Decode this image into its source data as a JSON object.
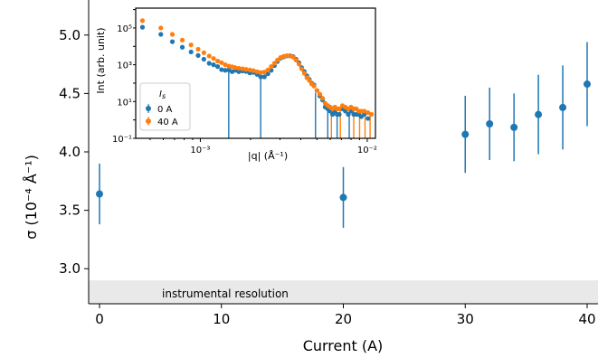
{
  "chart_data": [
    {
      "type": "scatter",
      "xlabel": "Current (A)",
      "ylabel": "σ (10⁻⁴ Å⁻¹)",
      "xlim": [
        -1.3,
        41
      ],
      "ylim": [
        2.7,
        5.3
      ],
      "xticks": [
        0,
        10,
        20,
        30,
        40
      ],
      "yticks": [
        3.0,
        3.5,
        4.0,
        4.5,
        5.0
      ],
      "xtick_labels": [
        "0",
        "10",
        "20",
        "30",
        "40"
      ],
      "ytick_labels": [
        "3.0",
        "3.5",
        "4.0",
        "4.5",
        "5.0"
      ],
      "grid": false,
      "color": "#1f77b4",
      "points": [
        {
          "x": 0,
          "y": 3.64,
          "err": 0.26
        },
        {
          "x": 20,
          "y": 3.61,
          "err": 0.26
        },
        {
          "x": 30,
          "y": 4.15,
          "err": 0.33
        },
        {
          "x": 32,
          "y": 4.24,
          "err": 0.31
        },
        {
          "x": 34,
          "y": 4.21,
          "err": 0.29
        },
        {
          "x": 36,
          "y": 4.32,
          "err": 0.34
        },
        {
          "x": 38,
          "y": 4.38,
          "err": 0.36
        },
        {
          "x": 40,
          "y": 4.58,
          "err": 0.36
        }
      ],
      "band": {
        "y_from": 2.7,
        "y_to": 2.9,
        "label": "instrumental resolution",
        "color": "#e9e9e9"
      }
    },
    {
      "type": "scatter",
      "xlabel": "|q| (Å⁻¹)",
      "ylabel": "Int (arb. unit)",
      "x_scale": "log",
      "y_scale": "log",
      "xlim": [
        0.00041,
        0.0112
      ],
      "ylim": [
        0.1,
        1200000
      ],
      "xtick_labels": [
        "10⁻³",
        "10⁻²"
      ],
      "ytick_labels": [
        "10⁵",
        "10³",
        "10¹",
        "10⁻¹"
      ],
      "legend": {
        "title": "I_s",
        "placement": "lower-left",
        "entries": [
          {
            "label": "0 A",
            "color": "#1f77b4"
          },
          {
            "label": "40 A",
            "color": "#ff7f0e"
          }
        ]
      },
      "series": [
        {
          "name": "0 A",
          "color": "#1f77b4",
          "q": [
            0.00045,
            0.00058,
            0.00068,
            0.00078,
            0.00088,
            0.00097,
            0.00105,
            0.00113,
            0.0012,
            0.00127,
            0.00134,
            0.00141,
            0.00148,
            0.00155,
            0.00162,
            0.0017,
            0.00179,
            0.00188,
            0.00198,
            0.00208,
            0.00219,
            0.0023,
            0.00242,
            0.00254,
            0.00266,
            0.00278,
            0.0029,
            0.00303,
            0.00316,
            0.0033,
            0.00345,
            0.0036,
            0.00375,
            0.0039,
            0.00405,
            0.0042,
            0.00435,
            0.0045,
            0.00465,
            0.0048,
            0.005,
            0.0052,
            0.0054,
            0.0056,
            0.0058,
            0.006,
            0.0062,
            0.0064,
            0.0066,
            0.0068,
            0.0071,
            0.0074,
            0.0077,
            0.008,
            0.0083,
            0.0086,
            0.0089,
            0.0092,
            0.0096,
            0.0101
          ],
          "intensity": [
            110000,
            45000,
            18000,
            9000,
            5000,
            3200,
            2000,
            1200,
            1000,
            800,
            540,
            500,
            520,
            420,
            500,
            420,
            460,
            430,
            360,
            380,
            300,
            220,
            220,
            320,
            500,
            900,
            1500,
            2300,
            2700,
            3000,
            3100,
            2800,
            2000,
            1300,
            700,
            430,
            250,
            160,
            100,
            80,
            40,
            20,
            12,
            5,
            4,
            3,
            2,
            3,
            2,
            2,
            4,
            3,
            2,
            3,
            2,
            2,
            2,
            1.5,
            2,
            1.2
          ],
          "dropouts": [
            {
              "q": 0.00148,
              "from": 420,
              "to": 0.1
            },
            {
              "q": 0.0023,
              "from": 220,
              "to": 0.1
            },
            {
              "q": 0.0049,
              "from": 30,
              "to": 0.1
            },
            {
              "q": 0.0058,
              "from": 4,
              "to": 0.1
            },
            {
              "q": 0.0066,
              "from": 2,
              "to": 0.1
            },
            {
              "q": 0.0078,
              "from": 2.5,
              "to": 0.1
            }
          ]
        },
        {
          "name": "40 A",
          "color": "#ff7f0e",
          "q": [
            0.00045,
            0.00058,
            0.00068,
            0.00078,
            0.00088,
            0.00097,
            0.00105,
            0.00113,
            0.0012,
            0.00127,
            0.00134,
            0.00141,
            0.00148,
            0.00155,
            0.00162,
            0.0017,
            0.00179,
            0.00188,
            0.00198,
            0.00208,
            0.00219,
            0.0023,
            0.00242,
            0.00254,
            0.00266,
            0.00278,
            0.0029,
            0.00303,
            0.00316,
            0.0033,
            0.00345,
            0.0036,
            0.00375,
            0.0039,
            0.00405,
            0.0042,
            0.00435,
            0.0045,
            0.00465,
            0.0048,
            0.005,
            0.0052,
            0.0054,
            0.0056,
            0.0058,
            0.006,
            0.0062,
            0.0064,
            0.0066,
            0.0068,
            0.0071,
            0.0074,
            0.0077,
            0.008,
            0.0083,
            0.0086,
            0.0089,
            0.0092,
            0.0096,
            0.0101,
            0.0106
          ],
          "intensity": [
            250000,
            100000,
            45000,
            22000,
            12000,
            7000,
            4500,
            3000,
            2200,
            1600,
            1300,
            1000,
            850,
            780,
            700,
            650,
            600,
            560,
            520,
            480,
            420,
            380,
            400,
            520,
            800,
            1200,
            1800,
            2500,
            2900,
            3100,
            3000,
            2600,
            1800,
            1100,
            600,
            350,
            200,
            140,
            90,
            70,
            40,
            25,
            15,
            8,
            6,
            5,
            4,
            5,
            4,
            4,
            6,
            5,
            4,
            5,
            4,
            4,
            3,
            3,
            3,
            2.5,
            2
          ],
          "dropouts": [
            {
              "q": 0.0061,
              "from": 5,
              "to": 0.1
            },
            {
              "q": 0.0069,
              "from": 4,
              "to": 0.1
            },
            {
              "q": 0.0083,
              "from": 4,
              "to": 0.1
            },
            {
              "q": 0.009,
              "from": 3,
              "to": 0.1
            },
            {
              "q": 0.0097,
              "from": 3,
              "to": 0.1
            },
            {
              "q": 0.0104,
              "from": 2.5,
              "to": 0.1
            }
          ]
        }
      ]
    }
  ]
}
